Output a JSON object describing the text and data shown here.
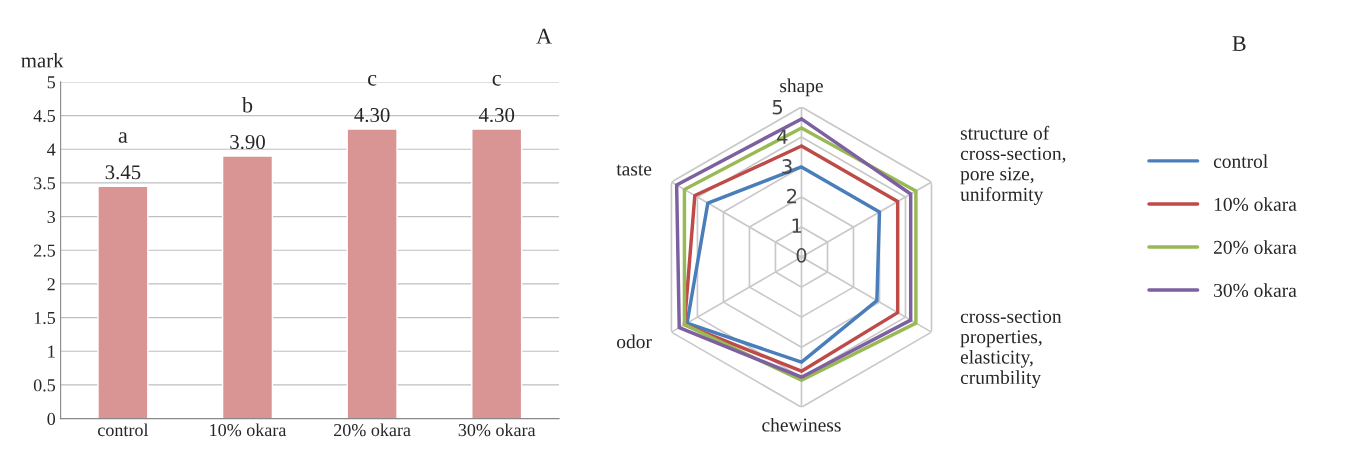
{
  "chart_data": [
    {
      "type": "bar",
      "title": "A",
      "ylabel": "mark",
      "categories": [
        "control",
        "10% okara",
        "20% okara",
        "30% okara"
      ],
      "values": [
        3.45,
        3.9,
        4.3,
        4.3
      ],
      "color": "#d99594",
      "value_labels": [
        "3.45",
        "3.90",
        "4.30",
        "4.30"
      ],
      "ylim": [
        0,
        5
      ],
      "yticks": [
        0,
        0.5,
        1,
        1.5,
        2,
        2.5,
        3,
        3.5,
        4,
        4.5,
        5
      ],
      "grid": "y",
      "legend": false,
      "annotations": [
        "a",
        "b",
        "c",
        "c"
      ]
    },
    {
      "type": "radar",
      "title": "B",
      "categories": [
        "shape",
        "structure of\ncross-section,\npore size,\nuniformity",
        "cross-section\nproperties,\nelasticity,\ncrumbility",
        "chewiness",
        "odor",
        "taste"
      ],
      "ylim": [
        0,
        5
      ],
      "yticks": [
        0,
        1,
        2,
        3,
        4,
        5
      ],
      "legend": "right",
      "grid": true,
      "series": [
        {
          "name": "control",
          "color": "#4a7ebb",
          "values": [
            3.0,
            3.0,
            2.9,
            3.5,
            4.4,
            3.6
          ]
        },
        {
          "name": "10% okara",
          "color": "#be4b48",
          "values": [
            3.7,
            3.7,
            3.7,
            3.8,
            4.5,
            4.1
          ]
        },
        {
          "name": "20% okara",
          "color": "#98b954",
          "values": [
            4.3,
            4.4,
            4.4,
            4.1,
            4.5,
            4.5
          ]
        },
        {
          "name": "30% okara",
          "color": "#7d60a0",
          "values": [
            4.6,
            4.2,
            4.2,
            4.0,
            4.7,
            4.8
          ]
        }
      ]
    }
  ]
}
